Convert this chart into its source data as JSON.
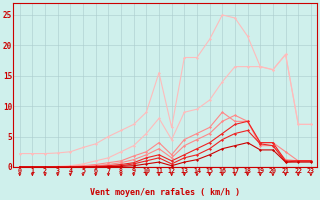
{
  "x": [
    0,
    1,
    2,
    3,
    4,
    5,
    6,
    7,
    8,
    9,
    10,
    11,
    12,
    13,
    14,
    15,
    16,
    17,
    18,
    19,
    20,
    21,
    22,
    23
  ],
  "background_color": "#cff0ec",
  "grid_color": "#aacccc",
  "xlabel": "Vent moyen/en rafales ( km/h )",
  "xlabel_color": "#cc0000",
  "tick_color": "#cc0000",
  "ylim": [
    0,
    27
  ],
  "xlim": [
    -0.5,
    23.5
  ],
  "yticks": [
    0,
    5,
    10,
    15,
    20,
    25
  ],
  "series": [
    {
      "name": "line1_lightest",
      "color": "#ffbbbb",
      "linewidth": 0.8,
      "markersize": 1.5,
      "y": [
        2.2,
        2.2,
        2.2,
        2.3,
        2.5,
        3.2,
        3.8,
        5.0,
        6.0,
        7.0,
        9.0,
        15.5,
        6.5,
        18.0,
        18.0,
        21.0,
        25.0,
        24.5,
        21.5,
        16.5,
        16.0,
        18.5,
        7.0,
        7.0
      ]
    },
    {
      "name": "line2_light",
      "color": "#ffbbbb",
      "linewidth": 0.8,
      "markersize": 1.5,
      "y": [
        0.0,
        0.0,
        0.0,
        0.1,
        0.2,
        0.5,
        1.0,
        1.5,
        2.5,
        3.5,
        5.5,
        8.0,
        4.5,
        9.0,
        9.5,
        11.0,
        14.0,
        16.5,
        16.5,
        16.5,
        16.0,
        18.5,
        7.0,
        7.0
      ]
    },
    {
      "name": "line3_pink",
      "color": "#ff8888",
      "linewidth": 0.8,
      "markersize": 1.5,
      "y": [
        0.0,
        0.0,
        0.0,
        0.0,
        0.1,
        0.2,
        0.4,
        0.7,
        1.0,
        1.8,
        2.5,
        4.0,
        2.0,
        4.5,
        5.5,
        6.5,
        9.0,
        7.5,
        7.5,
        4.0,
        4.0,
        2.5,
        1.0,
        1.0
      ]
    },
    {
      "name": "line4_pink",
      "color": "#ff8888",
      "linewidth": 0.8,
      "markersize": 1.5,
      "y": [
        0.0,
        0.0,
        0.0,
        0.0,
        0.05,
        0.1,
        0.2,
        0.4,
        0.7,
        1.2,
        2.0,
        3.0,
        1.5,
        3.5,
        4.5,
        5.5,
        7.5,
        8.5,
        7.5,
        3.5,
        3.5,
        1.2,
        1.0,
        1.0
      ]
    },
    {
      "name": "line5_red",
      "color": "#ee2222",
      "linewidth": 0.8,
      "markersize": 1.5,
      "y": [
        0.0,
        0.0,
        0.0,
        0.0,
        0.0,
        0.05,
        0.1,
        0.2,
        0.4,
        0.7,
        1.5,
        2.0,
        1.0,
        2.0,
        3.0,
        4.0,
        5.5,
        7.0,
        7.5,
        4.0,
        4.0,
        1.0,
        1.0,
        1.0
      ]
    },
    {
      "name": "line6_red",
      "color": "#ee2222",
      "linewidth": 0.8,
      "markersize": 1.5,
      "y": [
        0.0,
        0.0,
        0.0,
        0.0,
        0.0,
        0.02,
        0.05,
        0.1,
        0.2,
        0.5,
        1.0,
        1.5,
        0.5,
        1.5,
        2.0,
        3.0,
        4.5,
        5.5,
        6.0,
        3.8,
        3.5,
        0.8,
        1.0,
        1.0
      ]
    },
    {
      "name": "line7_darkred",
      "color": "#cc0000",
      "linewidth": 0.8,
      "markersize": 1.5,
      "y": [
        0.0,
        0.0,
        0.0,
        0.0,
        0.0,
        0.01,
        0.02,
        0.05,
        0.1,
        0.2,
        0.5,
        0.8,
        0.2,
        0.8,
        1.2,
        2.0,
        3.0,
        3.5,
        4.0,
        2.8,
        2.8,
        0.8,
        0.8,
        0.8
      ]
    }
  ],
  "arrow_color": "#cc0000",
  "hline_color": "#cc0000",
  "spine_color": "#cc0000"
}
